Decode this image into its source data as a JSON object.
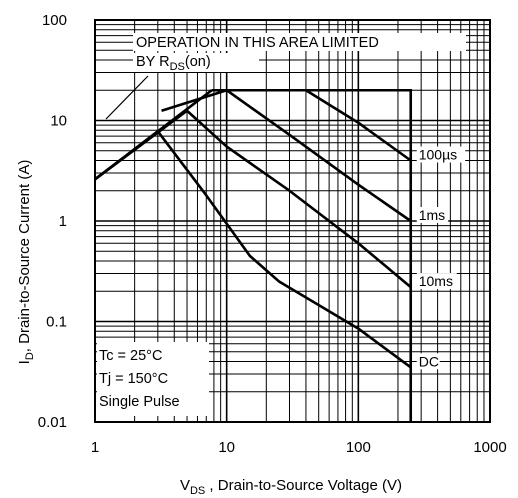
{
  "chart_data": {
    "type": "line",
    "x_scale": "log",
    "y_scale": "log",
    "xlim": [
      1,
      1000
    ],
    "ylim": [
      0.01,
      100
    ],
    "grid": true,
    "x_ticks": [
      "1",
      "10",
      "100",
      "1000"
    ],
    "y_ticks": [
      "0.01",
      "0.1",
      "1",
      "10",
      "100"
    ],
    "xlabel": {
      "symbol": "V",
      "subscript": "DS",
      "text": " , Drain-to-Source Voltage  (V)"
    },
    "ylabel": {
      "symbol": "I",
      "subscript": "D",
      "text": ", Drain-to-Source Current  (A)"
    },
    "annotation": {
      "line1": "OPERATION IN THIS AREA LIMITED",
      "line2_prefix": "BY R",
      "line2_sub": "DS",
      "line2_suffix": "(on)"
    },
    "conditions": [
      "Tc  = 25°C",
      "Tj  = 150°C",
      "Single Pulse"
    ],
    "limits": {
      "id_max": 20,
      "vds_max": 250
    },
    "rds_on_line": {
      "x": [
        1,
        2,
        3,
        5,
        7.7
      ],
      "y": [
        2.6,
        5.2,
        7.8,
        13,
        20
      ]
    },
    "series": [
      {
        "name": "100µs",
        "x": [
          7.7,
          15,
          40,
          100,
          250
        ],
        "y": [
          20,
          20,
          20,
          9.5,
          4
        ]
      },
      {
        "name": "1ms",
        "x": [
          3.2,
          10,
          30,
          100,
          250
        ],
        "y": [
          12.5,
          20,
          7.2,
          2.3,
          1
        ]
      },
      {
        "name": "10ms",
        "x": [
          1,
          5,
          10,
          30,
          100,
          250
        ],
        "y": [
          2.6,
          12.5,
          5.5,
          2,
          0.6,
          0.22
        ]
      },
      {
        "name": "DC",
        "x": [
          1,
          3,
          7,
          15,
          25,
          100,
          250
        ],
        "y": [
          2.6,
          7.8,
          1.8,
          0.45,
          0.25,
          0.085,
          0.035
        ]
      }
    ]
  }
}
